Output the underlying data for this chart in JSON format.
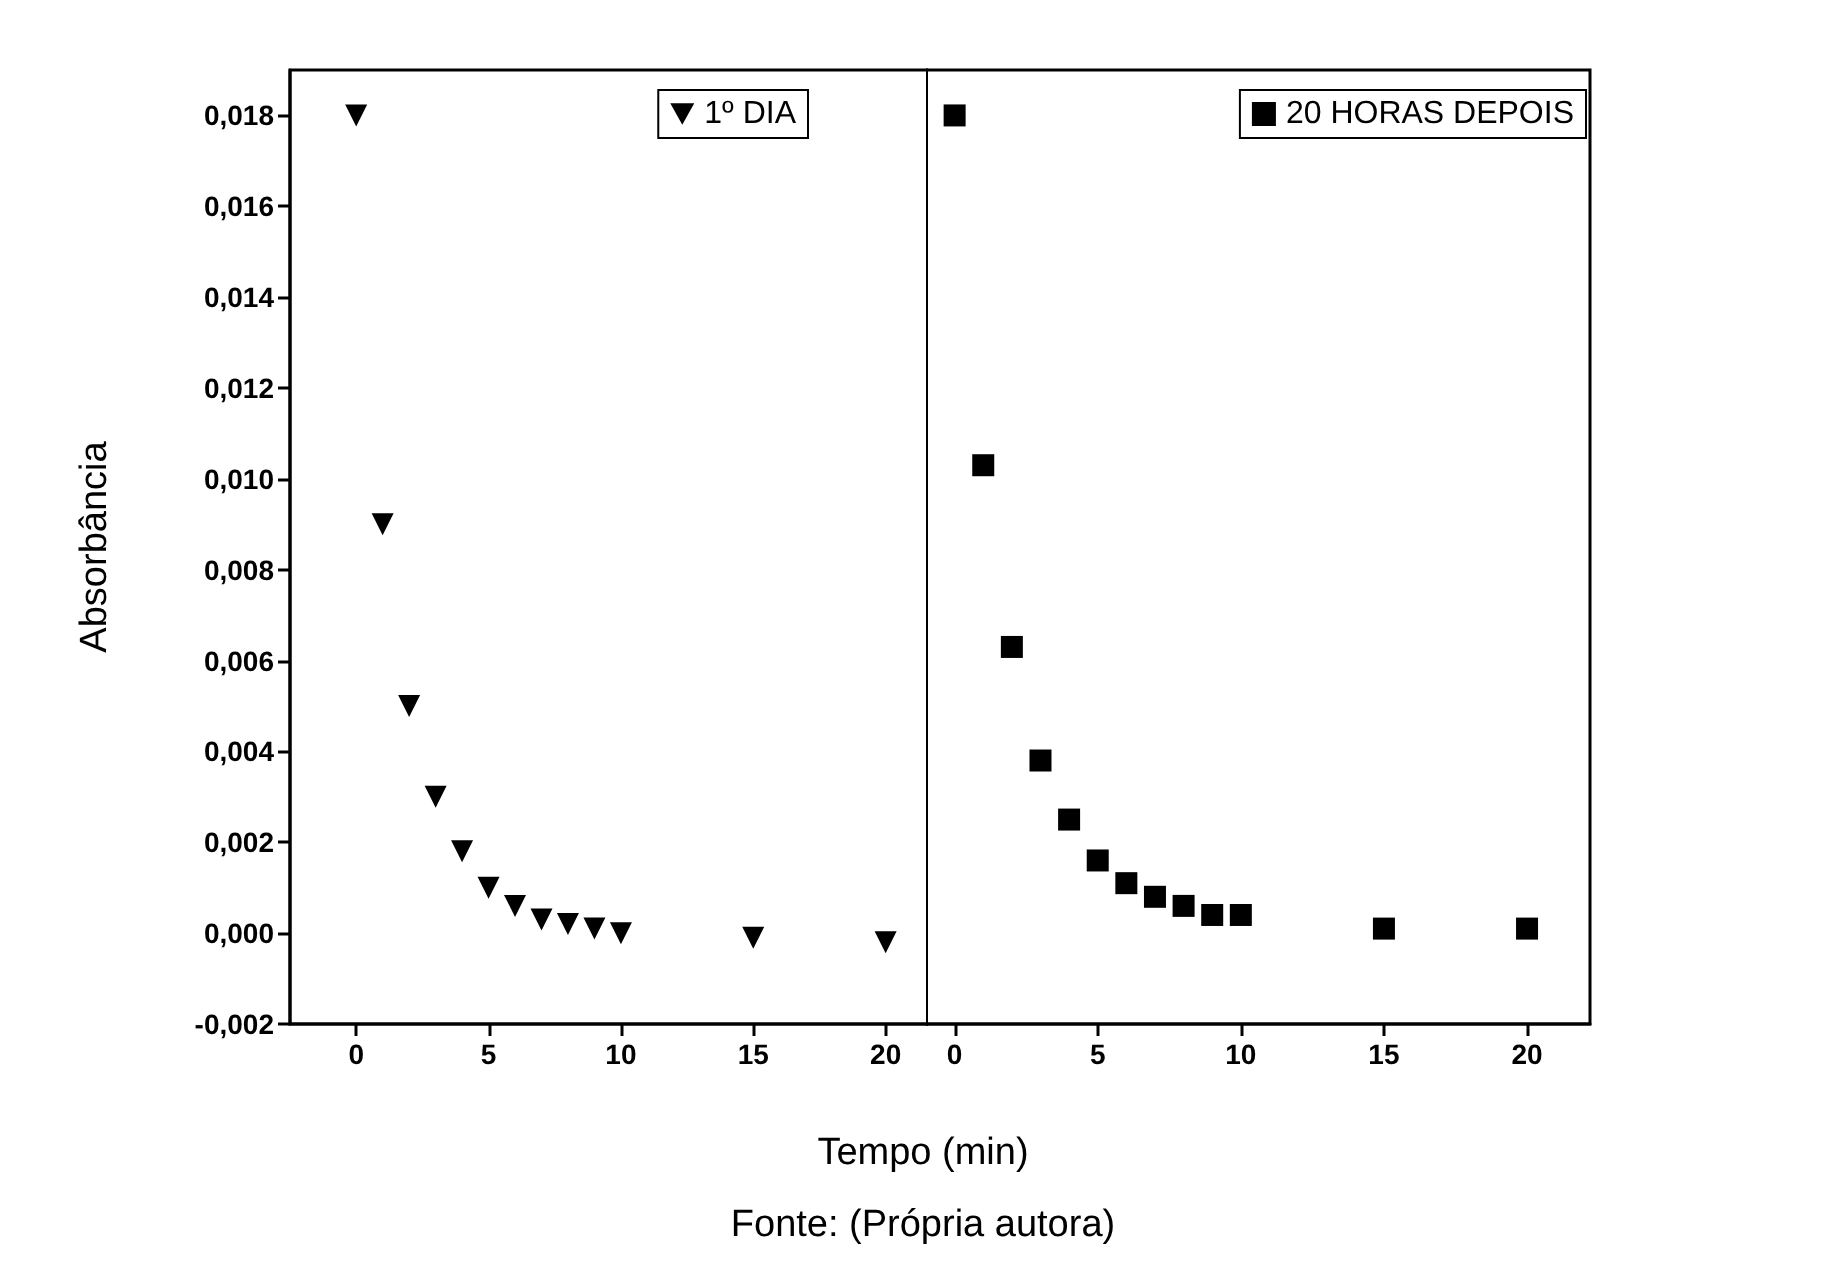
{
  "chart_data": [
    {
      "type": "scatter",
      "xlabel": "Tempo (min)",
      "ylabel": "Absorbância",
      "annotations": [
        "Fonte: (Própria autora)"
      ],
      "x": [
        0,
        1,
        2,
        3,
        4,
        5,
        6,
        7,
        8,
        9,
        10,
        15,
        20
      ],
      "series": [
        {
          "name": "1º DIA",
          "color": "#000000",
          "values": [
            0.018,
            0.009,
            0.005,
            0.003,
            0.0018,
            0.001,
            0.0006,
            0.0003,
            0.0002,
            0.0001,
            0.0,
            -0.0001,
            -0.0002
          ]
        }
      ],
      "xlim": [
        -2.5,
        21.6
      ],
      "xticks": [
        0,
        5,
        10,
        15,
        20
      ],
      "ylim": [
        -0.002,
        0.019
      ],
      "yticks": [
        {
          "value": -0.002,
          "label": "-0,002"
        },
        {
          "value": 0,
          "label": "0,000"
        },
        {
          "value": 0.002,
          "label": "0,002"
        },
        {
          "value": 0.004,
          "label": "0,004"
        },
        {
          "value": 0.006,
          "label": "0,006"
        },
        {
          "value": 0.008,
          "label": "0,008"
        },
        {
          "value": 0.01,
          "label": "0,010"
        },
        {
          "value": 0.012,
          "label": "0,012"
        },
        {
          "value": 0.014,
          "label": "0,014"
        },
        {
          "value": 0.016,
          "label": "0,016"
        },
        {
          "value": 0.018,
          "label": "0,018"
        }
      ],
      "marker": "triangle",
      "legend": "top right"
    },
    {
      "type": "scatter",
      "x": [
        0,
        1,
        2,
        3,
        4,
        5,
        6,
        7,
        8,
        9,
        10,
        15,
        20
      ],
      "series": [
        {
          "name": "20 HORAS DEPOIS",
          "color": "#000000",
          "values": [
            0.018,
            0.0103,
            0.0063,
            0.0038,
            0.0025,
            0.0016,
            0.0011,
            0.0008,
            0.0006,
            0.0004,
            0.0004,
            0.0001,
            0.0001
          ]
        }
      ],
      "xlim": [
        -1,
        22.2
      ],
      "xticks": [
        0,
        5,
        10,
        15,
        20
      ],
      "ylim": [
        -0.002,
        0.019
      ],
      "marker": "square",
      "legend": "top right",
      "tick_labels": "x"
    }
  ]
}
